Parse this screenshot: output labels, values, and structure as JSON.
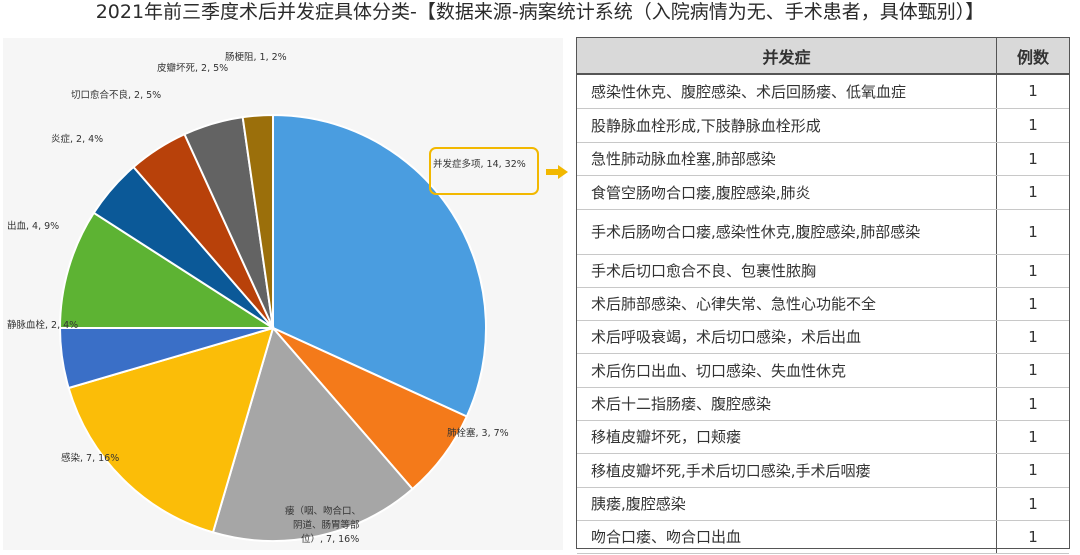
{
  "title": "2021年前三季度术后并发症具体分类-【数据来源-病案统计系统（入院病情为无、手术患者，具体甄别）】",
  "chart_data": {
    "type": "pie",
    "title": "",
    "slices": [
      {
        "label": "并发症多项",
        "value": 14,
        "percent": "32%",
        "color": "#4a9de0"
      },
      {
        "label": "肺栓塞",
        "value": 3,
        "percent": "7%",
        "color": "#f47a1a"
      },
      {
        "label": "瘘（咽、吻合口、阴道、肠胃等部位）",
        "value": 7,
        "percent": "16%",
        "color": "#a6a6a6"
      },
      {
        "label": "感染",
        "value": 7,
        "percent": "16%",
        "color": "#fbbd08"
      },
      {
        "label": "静脉血栓",
        "value": 2,
        "percent": "4%",
        "color": "#3a6fc7"
      },
      {
        "label": "出血",
        "value": 4,
        "percent": "9%",
        "color": "#5db333"
      },
      {
        "label": "炎症",
        "value": 2,
        "percent": "4%",
        "color": "#0b5998"
      },
      {
        "label": "切口愈合不良",
        "value": 2,
        "percent": "5%",
        "color": "#b8410a"
      },
      {
        "label": "皮瓣坏死",
        "value": 2,
        "percent": "5%",
        "color": "#636363"
      },
      {
        "label": "肠梗阻",
        "value": 1,
        "percent": "2%",
        "color": "#9b6f0b"
      }
    ]
  },
  "labels": {
    "s0": "并发症多项, 14, 32%",
    "s1": "肺栓塞, 3, 7%",
    "s2a": "瘘（咽、吻合口、",
    "s2b": "阴道、肠胃等部",
    "s2c": "位）, 7, 16%",
    "s3": "感染, 7, 16%",
    "s4": "静脉血栓, 2, 4%",
    "s5": "出血, 4, 9%",
    "s6": "炎症, 2, 4%",
    "s7": "切口愈合不良, 2, 5%",
    "s8": "皮瓣坏死, 2, 5%",
    "s9": "肠梗阻, 1, 2%"
  },
  "table": {
    "headers": [
      "并发症",
      "例数"
    ],
    "rows": [
      [
        "感染性休克、腹腔感染、术后回肠瘘、低氧血症",
        "1"
      ],
      [
        "股静脉血栓形成,下肢静脉血栓形成",
        "1"
      ],
      [
        "急性肺动脉血栓塞,肺部感染",
        "1"
      ],
      [
        "食管空肠吻合口瘘,腹腔感染,肺炎",
        "1"
      ],
      [
        "手术后肠吻合口瘘,感染性休克,腹腔感染,肺部感染",
        "1"
      ],
      [
        "手术后切口愈合不良、包裹性脓胸",
        "1"
      ],
      [
        "术后肺部感染、心律失常、急性心功能不全",
        "1"
      ],
      [
        "术后呼吸衰竭，术后切口感染，术后出血",
        "1"
      ],
      [
        "术后伤口出血、切口感染、失血性休克",
        "1"
      ],
      [
        "术后十二指肠瘘、腹腔感染",
        "1"
      ],
      [
        "移植皮瓣坏死，口颊瘘",
        "1"
      ],
      [
        "移植皮瓣坏死,手术后切口感染,手术后咽瘘",
        "1"
      ],
      [
        "胰瘘,腹腔感染",
        "1"
      ],
      [
        "吻合口瘘、吻合口出血",
        "1"
      ]
    ]
  }
}
